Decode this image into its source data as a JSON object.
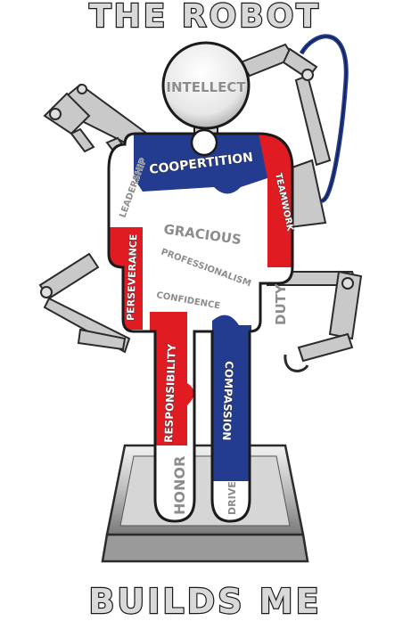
{
  "title_top": "THE ROBOT",
  "title_bottom": "BUILDS ME",
  "head_word": "INTELLECT",
  "words": {
    "leadership": "LEADERSHIP",
    "coopertition": "COOPERTITION",
    "teamwork": "TEAMWORK",
    "perseverance": "PERSEVERANCE",
    "gracious": "GRACIOUS",
    "professionalism": "PROFESSIONALISM",
    "confidence": "CONFIDENCE",
    "duty": "DUTY",
    "responsibility": "RESPONSIBILITY",
    "compassion": "COMPASSION",
    "honor": "HONOR",
    "drive": "DRIVE"
  },
  "colors": {
    "red": "#e11b22",
    "blue": "#243c8f",
    "white": "#ffffff",
    "grey": "#c9c9c9",
    "outline": "#1b1b1b"
  }
}
